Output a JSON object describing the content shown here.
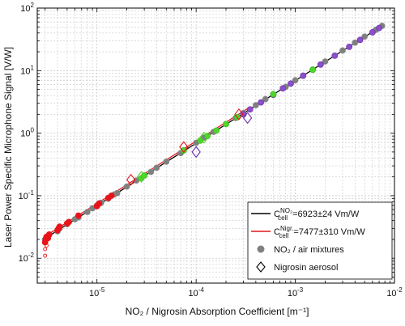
{
  "chart_data": {
    "type": "scatter",
    "x_scale": "log",
    "y_scale": "log",
    "xlim": [
      2.5e-06,
      0.01
    ],
    "ylim": [
      0.004,
      100
    ],
    "grid": true,
    "xlabel": "NO₂ / Nigrosin Absorption Coefficient [m⁻¹]",
    "ylabel": "Laser Power Specific Microphone Signal [V/W]",
    "x_ticks": [
      {
        "value": 1e-05,
        "base": "10",
        "exp": "-5"
      },
      {
        "value": 0.0001,
        "base": "10",
        "exp": "-4"
      },
      {
        "value": 0.001,
        "base": "10",
        "exp": "-3"
      },
      {
        "value": 0.01,
        "base": "10",
        "exp": "-2"
      }
    ],
    "y_ticks": [
      {
        "value": 0.01,
        "base": "10",
        "exp": "-2"
      },
      {
        "value": 0.1,
        "base": "10",
        "exp": "-1"
      },
      {
        "value": 1,
        "base": "10",
        "exp": "0"
      },
      {
        "value": 10,
        "base": "10",
        "exp": "1"
      },
      {
        "value": 100,
        "base": "10",
        "exp": "2"
      }
    ],
    "legend_position": "bottom-right",
    "legend": [
      {
        "kind": "line",
        "color": "#000000",
        "sym": "C",
        "sup": "NO₂",
        "sub": "cell",
        "rest": "=6923±24 Vm/W"
      },
      {
        "kind": "line",
        "color": "#e8141a",
        "sym": "C",
        "sup": "Nigr.",
        "sub": "cell",
        "rest": "=7477±310 Vm/W"
      },
      {
        "kind": "marker-circle",
        "color": "#808080",
        "text": "NO₂ / air mixtures"
      },
      {
        "kind": "marker-diamond",
        "color": "#000000",
        "text": "Nigrosin aerosol"
      }
    ],
    "fit_lines": [
      {
        "name": "NO₂ fit",
        "color": "#000000",
        "slope": 6923,
        "x_range": [
          3e-06,
          0.0075
        ]
      },
      {
        "name": "Nigrosin fit",
        "color": "#e8141a",
        "slope": 7477,
        "x_range": [
          3e-06,
          0.00035
        ]
      }
    ],
    "series": [
      {
        "name": "NO₂ / air mixtures",
        "marker": "circle",
        "fill": "#808080",
        "stroke": "#909090",
        "x": [
          3e-06,
          3.1e-06,
          3.3e-06,
          4e-06,
          4.2e-06,
          5e-06,
          6e-06,
          6.5e-06,
          8e-06,
          9e-06,
          1e-05,
          1.1e-05,
          1.3e-05,
          1.5e-05,
          1.6e-05,
          2e-05,
          2.5e-05,
          3e-05,
          3.5e-05,
          4e-05,
          5e-05,
          7e-05,
          0.0001,
          0.00012,
          0.00015,
          0.0002,
          0.00025,
          0.0003,
          0.0004,
          0.0005,
          0.0006,
          0.0008,
          0.001,
          0.0015,
          0.002,
          0.003,
          0.004,
          0.005,
          0.0065,
          0.0075
        ],
        "y": [
          0.02,
          0.022,
          0.024,
          0.027,
          0.03,
          0.035,
          0.042,
          0.045,
          0.055,
          0.063,
          0.07,
          0.077,
          0.09,
          0.105,
          0.11,
          0.14,
          0.175,
          0.21,
          0.24,
          0.28,
          0.35,
          0.48,
          0.7,
          0.85,
          1.05,
          1.4,
          1.75,
          2.1,
          2.8,
          3.5,
          4.2,
          5.5,
          7.0,
          10.4,
          14.0,
          21.0,
          28.0,
          35.0,
          45.0,
          52.0
        ]
      },
      {
        "name": "NO₂ / air mixtures (purple)",
        "marker": "circle",
        "fill": "#8a4fc9",
        "stroke": "#6a2fa9",
        "x": [
          0.0003,
          0.00035,
          0.00045,
          0.0006,
          0.00075,
          0.0009,
          0.0012,
          0.0018,
          0.0025,
          0.0035,
          0.0045,
          0.006,
          0.007
        ],
        "y": [
          2.0,
          2.4,
          3.1,
          4.1,
          5.2,
          6.2,
          8.3,
          12.5,
          17.3,
          24.0,
          31.0,
          41.0,
          48.0
        ]
      },
      {
        "name": "NO₂ / air mixtures (green)",
        "marker": "circle",
        "fill": "#4fd62a",
        "stroke": "#3db81e",
        "x": [
          2.8e-05,
          3e-05,
          7.5e-05,
          0.00011,
          0.00013,
          0.00016,
          0.0002,
          0.00026,
          0.0006,
          0.0015
        ],
        "y": [
          0.19,
          0.21,
          0.53,
          0.76,
          0.9,
          1.1,
          1.4,
          1.8,
          4.2,
          10.3
        ]
      },
      {
        "name": "NO₂ / air mixtures (red)",
        "marker": "circle",
        "fill": "#e8141a",
        "stroke": "#e8141a",
        "x": [
          3e-06,
          3.05e-06,
          3.1e-06,
          3.2e-06,
          3.3e-06,
          4e-06,
          4.1e-06,
          4.2e-06,
          5e-06,
          5.2e-06,
          6.5e-06,
          1e-05,
          1.05e-05,
          1.3e-05,
          1.4e-05
        ],
        "y": [
          0.018,
          0.02,
          0.022,
          0.021,
          0.024,
          0.028,
          0.03,
          0.032,
          0.036,
          0.038,
          0.048,
          0.068,
          0.075,
          0.092,
          0.1
        ]
      },
      {
        "name": "NO₂ / air mixtures (red, hollow)",
        "marker": "circle-open",
        "fill": "none",
        "stroke": "#e8141a",
        "x": [
          3e-06,
          3.1e-06,
          3e-06
        ],
        "y": [
          0.014,
          0.016,
          0.011
        ]
      },
      {
        "name": "Nigrosin aerosol (red)",
        "marker": "diamond",
        "fill": "none",
        "stroke": "#e8141a",
        "x": [
          2.2e-05,
          7.5e-05,
          0.00027
        ],
        "y": [
          0.18,
          0.6,
          2.0
        ]
      },
      {
        "name": "Nigrosin aerosol (green)",
        "marker": "diamond",
        "fill": "none",
        "stroke": "#4fd62a",
        "x": [
          2.8e-05,
          0.00012
        ],
        "y": [
          0.2,
          0.85
        ]
      },
      {
        "name": "Nigrosin aerosol (purple)",
        "marker": "diamond",
        "fill": "none",
        "stroke": "#6a2fa9",
        "x": [
          0.0001,
          0.00033
        ],
        "y": [
          0.5,
          1.75
        ]
      }
    ]
  }
}
